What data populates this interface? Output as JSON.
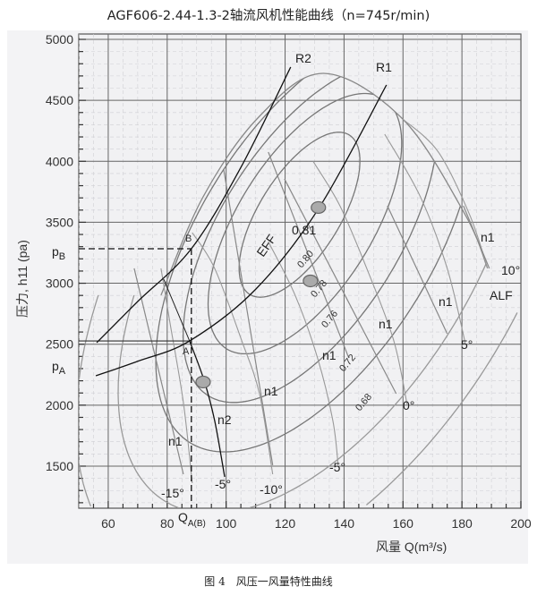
{
  "title": "AGF606-2.44-1.3-2轴流风机性能曲线（n=745r/min)",
  "caption": "图 4　风压一风量特性曲线",
  "chart_data": {
    "type": "line",
    "title": "AGF606-2.44-1.3-2轴流风机性能曲线（n=745r/min)",
    "xlabel": "风量 Q(m³/s)",
    "ylabel": "压力,  h11 (pa)",
    "xlim": [
      50,
      200
    ],
    "ylim": [
      1155,
      5044
    ],
    "grid": true,
    "x_ticks": [
      "60",
      "80",
      "100",
      "120",
      "140",
      "160",
      "180",
      "200"
    ],
    "x_tick_values": [
      60,
      80,
      100,
      120,
      140,
      160,
      180,
      200
    ],
    "y_ticks": [
      "1500",
      "2000",
      "2500",
      "3000",
      "3500",
      "4000",
      "4500",
      "5000"
    ],
    "y_tick_values": [
      1500,
      2000,
      2500,
      3000,
      3500,
      4000,
      4500,
      5000
    ],
    "series": [
      {
        "name": "R1",
        "points": [
          [
            55.8,
            2241
          ],
          [
            70,
            2360
          ],
          [
            87.6,
            2527
          ],
          [
            110,
            2950
          ],
          [
            131.6,
            3621
          ],
          [
            154.4,
            4626
          ]
        ]
      },
      {
        "name": "R2",
        "points": [
          [
            56.1,
            2513
          ],
          [
            70,
            2850
          ],
          [
            88.2,
            3283
          ],
          [
            105,
            3950
          ],
          [
            121.9,
            4773
          ]
        ]
      },
      {
        "name": "n2",
        "points": [
          [
            99.5,
            1412
          ],
          [
            96.1,
            1874
          ],
          [
            92.5,
            2205
          ],
          [
            87.6,
            2527
          ]
        ]
      }
    ],
    "stall_line": [
      [
        77.9,
        2902
      ],
      [
        92.2,
        3709
      ],
      [
        111.3,
        4369
      ],
      [
        133.1,
        4721
      ],
      [
        159.9,
        4347
      ],
      [
        181.1,
        3562
      ],
      [
        188.7,
        3122
      ]
    ],
    "blade_angle_curves": [
      {
        "label": "-15°",
        "points": [
          [
            88.5,
            1361
          ],
          [
            85.5,
            2021
          ],
          [
            80.9,
            2682
          ],
          [
            77.9,
            3122
          ]
        ]
      },
      {
        "label": "-10°",
        "points": [
          [
            115.8,
            1434
          ],
          [
            111.3,
            2094
          ],
          [
            105.2,
            2535
          ],
          [
            96.1,
            3122
          ],
          [
            88.5,
            3415
          ]
        ]
      },
      {
        "label": "-5°",
        "points": [
          [
            138.0,
            1508
          ],
          [
            136.2,
            1874
          ],
          [
            131.0,
            2388
          ],
          [
            123.4,
            2902
          ],
          [
            114.3,
            3342
          ]
        ]
      },
      {
        "label": "0°",
        "points": [
          [
            161.4,
            2006
          ],
          [
            156.8,
            2535
          ],
          [
            147.7,
            3122
          ],
          [
            138.6,
            3635
          ],
          [
            129.5,
            4000
          ]
        ]
      },
      {
        "label": "5°",
        "points": [
          [
            181.1,
            2513
          ],
          [
            175.0,
            3122
          ],
          [
            165.9,
            3709
          ],
          [
            153.8,
            4222
          ]
        ]
      },
      {
        "label": "10°",
        "points": [
          [
            188.7,
            3122
          ],
          [
            182.6,
            3562
          ],
          [
            172.0,
            4076
          ],
          [
            159.9,
            4347
          ]
        ]
      }
    ],
    "power_lines": [
      {
        "label": "n1",
        "points": [
          [
            68.8,
            3122
          ],
          [
            85.5,
            1434
          ]
        ]
      },
      {
        "label": "n1",
        "points": [
          [
            99.2,
            3929
          ],
          [
            115.8,
            1508
          ]
        ]
      },
      {
        "label": "n1",
        "points": [
          [
            114.3,
            4076
          ],
          [
            141.6,
            2388
          ]
        ]
      },
      {
        "label": "n1",
        "points": [
          [
            119.8,
            3855
          ],
          [
            157.7,
            2094
          ]
        ]
      },
      {
        "label": "n1",
        "points": [
          [
            154.7,
            3635
          ],
          [
            175.0,
            2586
          ]
        ]
      },
      {
        "label": "n1",
        "points": [
          [
            180.5,
            3635
          ],
          [
            189.3,
            3122
          ]
        ]
      }
    ],
    "efficiency_contours": [
      {
        "level": "0.81"
      },
      {
        "level": "0.80"
      },
      {
        "level": "0.78"
      },
      {
        "level": "0.76"
      },
      {
        "level": "0.72"
      },
      {
        "level": "0.68"
      }
    ],
    "efficiency_label": "EFF",
    "angle_label": "ALF",
    "operating_points": [
      {
        "label": "A",
        "x": 87.6,
        "y": 2527
      },
      {
        "label": "B",
        "x": 88.2,
        "y": 3283
      }
    ],
    "markers": [
      [
        131.3,
        3621
      ],
      [
        128.6,
        3019
      ],
      [
        92.2,
        2190
      ]
    ],
    "annotations": {
      "pa": "p",
      "pa_sub": "A",
      "pb": "p",
      "pb_sub": "B",
      "qa": "Q",
      "qa_sub": "A(B)",
      "n2_end_angle": "-5°"
    },
    "colors": {
      "background": "#f1f1f3",
      "grid": "#666666",
      "curve": "#777777",
      "dark": "#111111",
      "marker": "#aaaaaa"
    }
  }
}
